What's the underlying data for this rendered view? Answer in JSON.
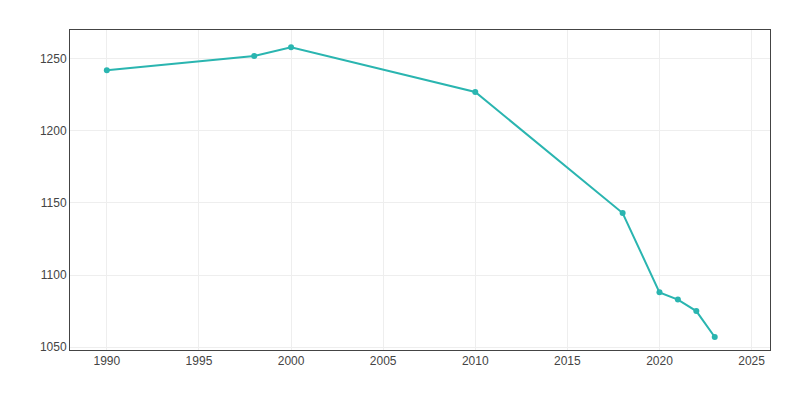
{
  "chart_data": {
    "type": "line",
    "x": [
      1990,
      1998,
      2000,
      2010,
      2018,
      2020,
      2021,
      2022,
      2023
    ],
    "values": [
      1242,
      1252,
      1258,
      1227,
      1143,
      1088,
      1083,
      1075,
      1057
    ],
    "color": "#2ab5b0",
    "marker": "circle",
    "xlim": [
      1988,
      2026
    ],
    "xticks": [
      1990,
      1995,
      2000,
      2005,
      2010,
      2015,
      2020,
      2025
    ],
    "ylim": [
      1048,
      1270
    ],
    "yticks": [
      1050,
      1100,
      1150,
      1200,
      1250
    ],
    "grid": true
  }
}
